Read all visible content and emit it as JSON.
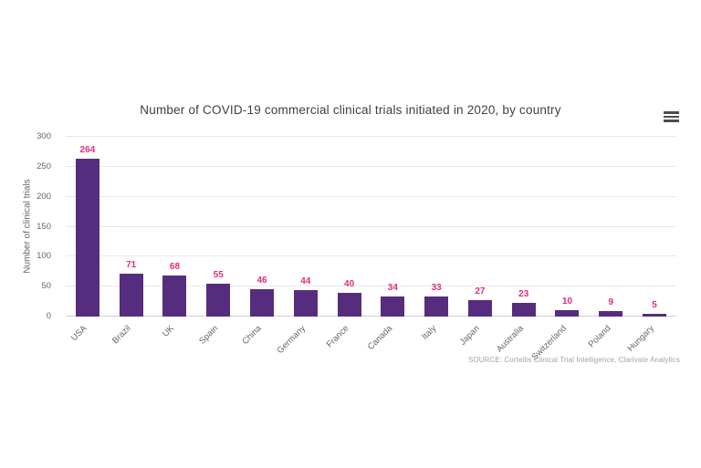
{
  "chart": {
    "title": "Number of COVID-19 commercial clinical trials initiated in 2020, by country",
    "y_axis": {
      "label": "Number of clinical trials",
      "ticks": [
        0,
        50,
        100,
        150,
        200,
        250,
        300
      ]
    },
    "source": "SOURCE: Cortellis Clinical Trial Intelligence, Clarivate Analytics",
    "menu_icon": "hamburger-menu-icon",
    "colors": {
      "bar": "#562d7e",
      "value_label": "#e72a7b",
      "gridline": "#e7e7e7",
      "axis_line": "#cfcfcf",
      "tick_text": "#666666",
      "title_text": "#3f3f3f",
      "source_text": "#a3a3a3",
      "menu_icon": "#4d4d4d"
    }
  },
  "chart_data": {
    "type": "bar",
    "title": "Number of COVID-19 commercial clinical trials initiated in 2020, by country",
    "categories": [
      "USA",
      "Brazil",
      "UK",
      "Spain",
      "China",
      "Germany",
      "France",
      "Canada",
      "Italy",
      "Japan",
      "Australia",
      "Switzerland",
      "Poland",
      "Hungary"
    ],
    "values": [
      264,
      71,
      68,
      55,
      46,
      44,
      40,
      34,
      33,
      27,
      23,
      10,
      9,
      5
    ],
    "xlabel": "",
    "ylabel": "Number of clinical trials",
    "ylim": [
      0,
      300
    ],
    "yticks": [
      0,
      50,
      100,
      150,
      200,
      250,
      300
    ],
    "grid": true,
    "legend": false,
    "data_labels": true,
    "bar_color": "#562d7e",
    "data_label_color": "#e72a7b"
  }
}
